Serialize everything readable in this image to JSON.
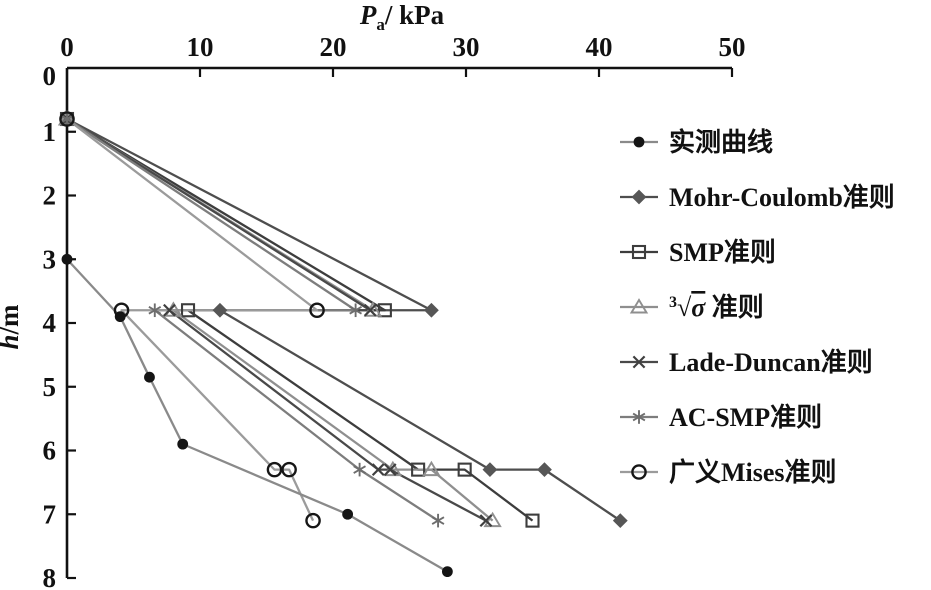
{
  "figure_background": "#ffffff",
  "chart_data": {
    "type": "line",
    "title": "Pa/ kPa",
    "title_parts": {
      "var": "P",
      "sub": "a",
      "unit": "/ kPa"
    },
    "xlabel": "Pa / kPa",
    "ylabel": "h/m",
    "ylabel_parts": {
      "var": "h",
      "unit": "/m"
    },
    "x_axis": {
      "min": 0,
      "max": 50,
      "ticks": [
        0,
        10,
        20,
        30,
        40,
        50
      ],
      "position": "top"
    },
    "y_axis": {
      "min": 0,
      "max": 8,
      "ticks": [
        0,
        1,
        2,
        3,
        4,
        5,
        6,
        7,
        8
      ],
      "position": "left",
      "inverted": true
    },
    "grid": false,
    "legend_position": "right",
    "axis_color": "#111111",
    "series": [
      {
        "key": "measured",
        "name": "实测曲线",
        "marker": "dot",
        "line_color": "#8a8a8a",
        "marker_color": "#141414",
        "points": [
          [
            0,
            3.0
          ],
          [
            4.0,
            3.9
          ],
          [
            6.2,
            4.85
          ],
          [
            8.7,
            5.9
          ],
          [
            21.1,
            7.0
          ],
          [
            28.6,
            7.9
          ]
        ]
      },
      {
        "key": "mohr-coulomb",
        "name": "Mohr-Coulomb准则",
        "marker": "diamond",
        "line_color": "#4e4e4e",
        "marker_color": "#565656",
        "points": [
          [
            0,
            0.8
          ],
          [
            27.4,
            3.8
          ],
          [
            11.5,
            3.8
          ],
          [
            31.8,
            6.3
          ],
          [
            35.9,
            6.3
          ],
          [
            41.6,
            7.1
          ]
        ]
      },
      {
        "key": "smp",
        "name": "SMP准则",
        "marker": "square",
        "line_color": "#3d3d3d",
        "marker_color": "#3d3d3d",
        "points": [
          [
            0,
            0.8
          ],
          [
            23.9,
            3.8
          ],
          [
            9.1,
            3.8
          ],
          [
            26.4,
            6.3
          ],
          [
            29.9,
            6.3
          ],
          [
            35.0,
            7.1
          ]
        ]
      },
      {
        "key": "sigma3",
        "name": "∛σ准则",
        "label_rich": {
          "sup": "3",
          "radical": "σ",
          "suffix": " 准则"
        },
        "marker": "triangle",
        "line_color": "#8f8f8f",
        "marker_color": "#8f8f8f",
        "points": [
          [
            0,
            0.8
          ],
          [
            23.0,
            3.8
          ],
          [
            8.0,
            3.8
          ],
          [
            24.5,
            6.3
          ],
          [
            27.4,
            6.3
          ],
          [
            32.0,
            7.1
          ]
        ]
      },
      {
        "key": "lade-duncan",
        "name": "Lade-Duncan准则",
        "marker": "x",
        "line_color": "#494949",
        "marker_color": "#3f3f3f",
        "points": [
          [
            0,
            0.8
          ],
          [
            22.8,
            3.8
          ],
          [
            7.7,
            3.8
          ],
          [
            23.4,
            6.3
          ],
          [
            24.3,
            6.3
          ],
          [
            31.5,
            7.1
          ]
        ]
      },
      {
        "key": "ac-smp",
        "name": "AC-SMP准则",
        "marker": "asterisk",
        "line_color": "#7d7d7d",
        "marker_color": "#6d6d6d",
        "points": [
          [
            0,
            0.8
          ],
          [
            21.7,
            3.8
          ],
          [
            6.6,
            3.8
          ],
          [
            22.0,
            6.3
          ],
          [
            27.9,
            7.1
          ]
        ]
      },
      {
        "key": "mises",
        "name": "广义Mises准则",
        "marker": "circle",
        "line_color": "#9b9b9b",
        "marker_color": "#161616",
        "points": [
          [
            0,
            0.8
          ],
          [
            18.8,
            3.8
          ],
          [
            4.1,
            3.8
          ],
          [
            15.6,
            6.3
          ],
          [
            16.7,
            6.3
          ],
          [
            18.5,
            7.1
          ]
        ]
      }
    ]
  }
}
